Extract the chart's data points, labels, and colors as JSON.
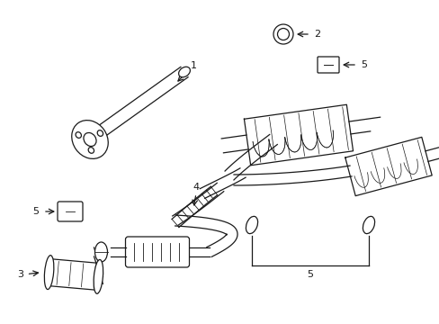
{
  "background_color": "#ffffff",
  "line_color": "#1a1a1a",
  "figsize": [
    4.89,
    3.6
  ],
  "dpi": 100,
  "lw": 0.9
}
